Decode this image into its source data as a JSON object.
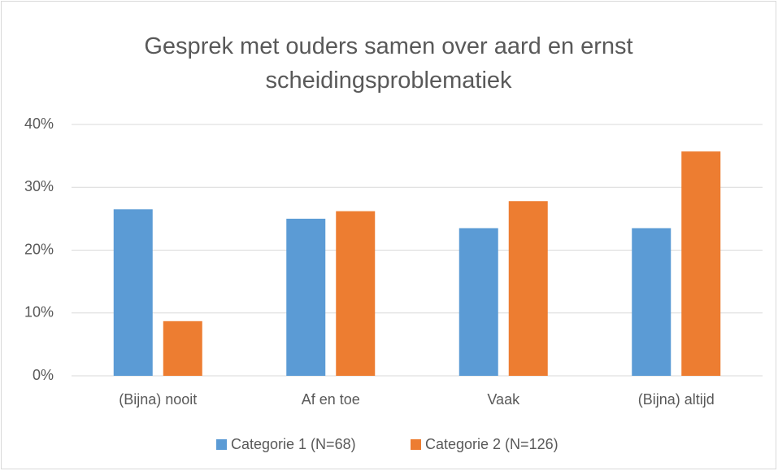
{
  "chart_data": {
    "type": "bar",
    "title": "Gesprek met ouders samen over aard en ernst scheidingsproblematiek",
    "categories": [
      "(Bijna) nooit",
      "Af en toe",
      "Vaak",
      "(Bijna) altijd"
    ],
    "series": [
      {
        "name": "Categorie 1 (N=68)",
        "color": "#5b9bd5",
        "values": [
          26.5,
          25,
          23.5,
          23.5
        ]
      },
      {
        "name": "Categorie 2 (N=126)",
        "color": "#ed7d31",
        "values": [
          8.7,
          26.2,
          27.8,
          35.7
        ]
      }
    ],
    "ylim": [
      0,
      40
    ],
    "yticks": [
      {
        "value": 0,
        "label": "0%"
      },
      {
        "value": 10,
        "label": "10%"
      },
      {
        "value": 20,
        "label": "20%"
      },
      {
        "value": 30,
        "label": "30%"
      },
      {
        "value": 40,
        "label": "40%"
      }
    ],
    "grid": true,
    "legend": "bottom"
  }
}
